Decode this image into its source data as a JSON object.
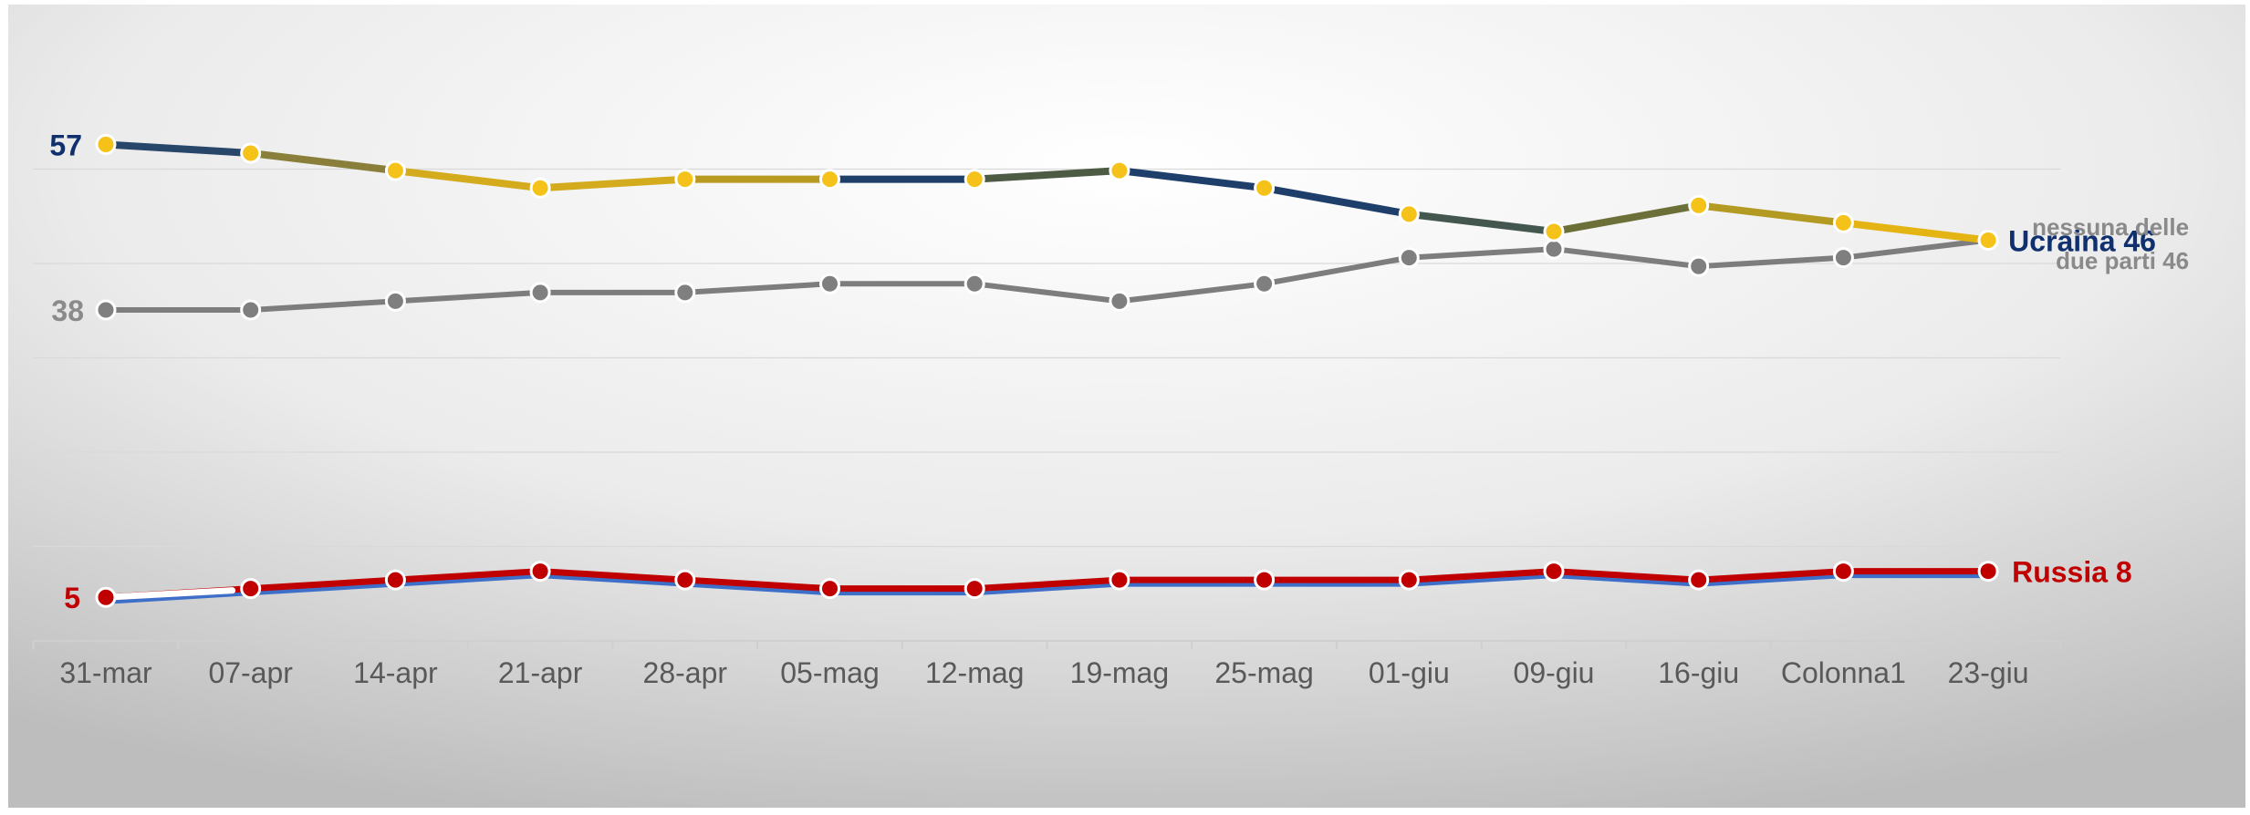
{
  "chart_data": {
    "type": "line",
    "categories": [
      "31-mar",
      "07-apr",
      "14-apr",
      "21-apr",
      "28-apr",
      "05-mag",
      "12-mag",
      "19-mag",
      "25-mag",
      "01-giu",
      "09-giu",
      "16-giu",
      "Colonna1",
      "23-giu"
    ],
    "ylim": [
      0,
      65
    ],
    "grid": true,
    "series": [
      {
        "key": "ukraine",
        "values": [
          57,
          56,
          54,
          52,
          53,
          53,
          53,
          54,
          52,
          49,
          47,
          50,
          48,
          46
        ],
        "color": "#1f3f6b",
        "accent_color": "#f2c10f",
        "marker_color": "#f5c21a",
        "start_label": "57",
        "end_label": "Ucraina 46",
        "label_color": "#0f2f6e"
      },
      {
        "key": "neither",
        "values": [
          38,
          38,
          39,
          40,
          40,
          41,
          41,
          39,
          41,
          44,
          45,
          43,
          44,
          46
        ],
        "color": "#7d7d7d",
        "marker_color": "#7f7f7f",
        "start_label": "38",
        "end_label_lines": [
          "nessuna delle",
          "due parti  46"
        ],
        "label_color": "#8a8a8a"
      },
      {
        "key": "russia",
        "values": [
          5,
          6,
          7,
          8,
          7,
          6,
          6,
          7,
          7,
          7,
          8,
          7,
          8,
          8
        ],
        "color": "#c00000",
        "secondary_color": "#3e6fc8",
        "marker_color": "#c00000",
        "start_label": "5",
        "end_label": "Russia 8",
        "label_color": "#c00000"
      }
    ]
  }
}
